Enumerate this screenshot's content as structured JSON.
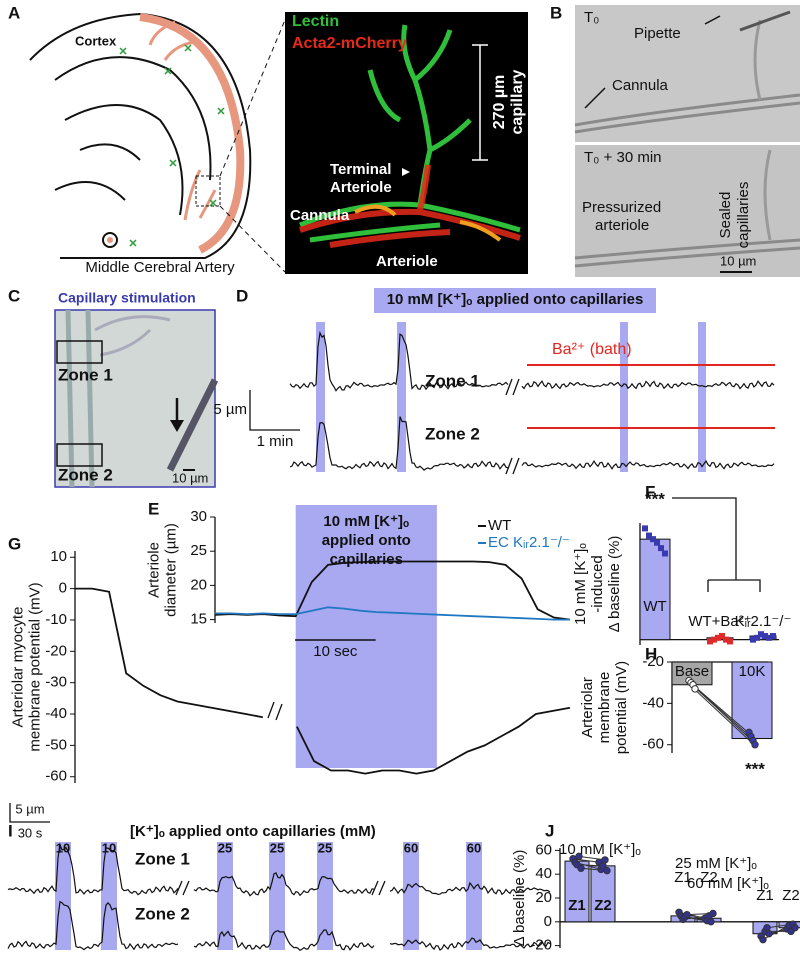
{
  "panel_labels": {
    "a": "A",
    "b": "B",
    "c": "C",
    "d": "D",
    "e": "E",
    "f": "F",
    "g": "G",
    "h": "H",
    "i": "I",
    "j": "J"
  },
  "panel_a": {
    "cortex": "Cortex",
    "artery": "Middle Cerebral Artery",
    "lectin": "Lectin",
    "acta2": "Acta2-mCherry",
    "scale_value": "270 µm",
    "scale_unit": "capillary",
    "terminal": "Terminal",
    "arteriole_line": "Arteriole",
    "cannula": "Cannula",
    "arteriole": "Arteriole"
  },
  "panel_b": {
    "t0": "T₀",
    "pipette": "Pipette",
    "cannula": "Cannula",
    "t30": "T₀ + 30 min",
    "sealed": "Sealed",
    "capillaries": "capillaries",
    "pressurized": "Pressurized",
    "arteriole": "arteriole",
    "scale": "10 µm"
  },
  "panel_c": {
    "title": "Capillary stimulation",
    "zone1": "Zone 1",
    "zone2": "Zone 2",
    "scale": "10 µm"
  },
  "panel_d": {
    "banner": "10 mM [K⁺]ₒ applied onto capillaries",
    "bath": "Ba²⁺ (bath)",
    "zone1": "Zone 1",
    "zone2": "Zone 2",
    "scale_y": "5 µm",
    "scale_x": "1 min"
  },
  "panel_i": {
    "banner": "[K⁺]ₒ applied onto capillaries (mM)",
    "stimuli": [
      "10",
      "10",
      "25",
      "25",
      "25",
      "60",
      "60"
    ],
    "zone1": "Zone 1",
    "zone2": "Zone 2",
    "scale_y": "5 µm",
    "scale_x": "30 s"
  },
  "chart_data": [
    {
      "type": "line",
      "ylabel": [
        "Arteriole",
        "diameter (µm)"
      ],
      "x": [
        0,
        2,
        4,
        6,
        8,
        10,
        12,
        14,
        16,
        18,
        20,
        22,
        24,
        26,
        28,
        30,
        32,
        34,
        36,
        38,
        40,
        42,
        44
      ],
      "series": [
        {
          "name": "WT",
          "color": "#111111",
          "values": [
            15.7,
            15.8,
            15.7,
            15.8,
            15.6,
            15.5,
            20.5,
            23,
            23.3,
            23.4,
            23.5,
            23.5,
            23.5,
            23.5,
            23.5,
            23.5,
            23.5,
            23.4,
            23,
            21,
            16.5,
            15.3,
            15
          ]
        },
        {
          "name": "EC Kᵢᵣ2.1⁻/⁻",
          "color": "#1f78c1",
          "values": [
            15.9,
            15.9,
            15.8,
            15.9,
            15.8,
            15.8,
            16.3,
            16.8,
            16.6,
            16.3,
            16.1,
            16,
            15.9,
            15.8,
            15.7,
            15.6,
            15.5,
            15.4,
            15.3,
            15.2,
            15.1,
            15,
            15
          ]
        }
      ],
      "xlim": [
        0,
        44
      ],
      "ylim": [
        14.5,
        30
      ],
      "yticks": [
        15,
        20,
        25,
        30
      ],
      "highlight": {
        "x": [
          10,
          27.5
        ],
        "lines": [
          "10 mM [K⁺]ₒ",
          "applied onto",
          "capillaries"
        ]
      },
      "scalebar": {
        "value": 10,
        "label": "10 sec"
      }
    },
    {
      "type": "line",
      "ylabel": [
        "Arteriolar myocyte",
        "membrane potential (mV)"
      ],
      "values": [
        0,
        0,
        -1,
        -27,
        -31,
        -34,
        -36,
        -37,
        -38,
        -39,
        -40,
        -41,
        null,
        -44,
        -55,
        -58,
        -58,
        -59,
        -58,
        -58,
        -59,
        -58,
        -55,
        -52,
        -50,
        -47,
        -44,
        -40,
        -39,
        -38
      ],
      "color": "#111111",
      "ylim": [
        -62,
        12
      ],
      "yticks": [
        10,
        0,
        -10,
        -20,
        -30,
        -40,
        -50,
        -60
      ]
    },
    {
      "type": "bar",
      "ylabel": [
        "10 mM [K⁺]ₒ",
        "-induced",
        "Δ baseline (%)"
      ],
      "categories": [
        "WT",
        "WT+Ba²⁺",
        "Kᵢᵣ2.1⁻/⁻"
      ],
      "values": [
        56,
        1,
        2
      ],
      "points": [
        [
          62,
          58,
          56,
          54,
          51,
          48
        ],
        [
          -1,
          0,
          1,
          2,
          0,
          -1
        ],
        [
          0,
          1,
          3,
          2,
          1,
          2
        ]
      ],
      "colors": [
        "#a9a9f2",
        "#a9a9f2",
        "#a9a9f2"
      ],
      "point_colors": [
        "#3a3ab0",
        "#e02a2a",
        "#3a3ab0"
      ],
      "significance": "***",
      "ylim": [
        -3,
        65
      ]
    },
    {
      "type": "bar",
      "ylabel": [
        "Arteriolar",
        "membrane",
        "potential (mV)"
      ],
      "categories": [
        "Base",
        "10K"
      ],
      "values": [
        -31,
        -57
      ],
      "points": [
        [
          -29,
          -30,
          -31,
          -33
        ],
        [
          -54,
          -56,
          -58,
          -60
        ]
      ],
      "colors": [
        "#a6a6a6",
        "#a9a9f2"
      ],
      "point_colors": [
        "#ffffff",
        "#3a3ab0"
      ],
      "significance": "***",
      "ylim": [
        -64,
        -20
      ],
      "yticks": [
        -20,
        -40,
        -60
      ]
    },
    {
      "type": "bar",
      "ylabel": [
        "Δ baseline (%)"
      ],
      "categories": [
        "Z1",
        "Z2",
        "Z1",
        "Z2",
        "Z1",
        "Z2"
      ],
      "values": [
        51,
        47,
        5,
        3,
        -10,
        -5
      ],
      "points": [
        [
          53,
          50,
          48,
          55,
          45
        ],
        [
          50,
          44,
          47,
          52,
          43
        ],
        [
          8,
          5,
          2,
          4,
          6
        ],
        [
          3,
          1,
          5,
          0,
          7
        ],
        [
          -12,
          -15,
          -8,
          -5,
          -10
        ],
        [
          -6,
          -3,
          -8,
          -2,
          -5
        ]
      ],
      "colors": [
        "#a9a9f2",
        "#a9a9f2",
        "#a9a9f2",
        "#a9a9f2",
        "#a9a9f2",
        "#a9a9f2"
      ],
      "point_colors": [
        "#33338f",
        "#33338f",
        "#33338f",
        "#33338f",
        "#33338f",
        "#33338f"
      ],
      "group_labels": [
        "10 mM [K⁺]ₒ",
        "25 mM [K⁺]ₒ",
        "60 mM [K⁺]ₒ"
      ],
      "ylim": [
        -22,
        62
      ],
      "yticks": [
        60,
        40,
        20,
        0,
        -20
      ]
    }
  ]
}
